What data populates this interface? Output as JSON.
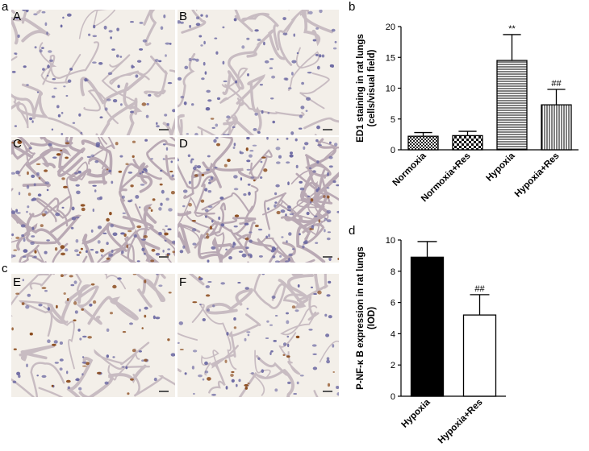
{
  "figure": {
    "panel_letters": [
      "a",
      "b",
      "c",
      "d"
    ],
    "micrograph_labels": [
      "A",
      "B",
      "C",
      "D",
      "E",
      "F"
    ]
  },
  "chart_data": [
    {
      "type": "bar",
      "panel": "b",
      "title": "",
      "xlabel": "",
      "ylabel": "ED1 staining in rat lungs (cells/visual field)",
      "ylabel_lines": [
        "ED1 staining in rat lungs",
        "(cells/visual field)"
      ],
      "categories": [
        "Normoxia",
        "Normoxia+Res",
        "Hypoxia",
        "Hypoxia+Res"
      ],
      "values": [
        2.2,
        2.3,
        14.5,
        7.3
      ],
      "errors": [
        0.6,
        0.7,
        4.2,
        2.5
      ],
      "annotations": [
        "",
        "",
        "**",
        "##"
      ],
      "patterns": [
        "checker-fine",
        "checker-coarse",
        "horizontal-lines",
        "vertical-lines"
      ],
      "ylim": [
        0,
        20
      ],
      "yticks": [
        "0",
        "5",
        "10",
        "15",
        "20"
      ],
      "grid": false,
      "legend": "none"
    },
    {
      "type": "bar",
      "panel": "d",
      "title": "",
      "xlabel": "",
      "ylabel": "P-NF-κ B expression in rat lungs (IOD)",
      "ylabel_lines": [
        "P-NF-κ B expression in rat lungs",
        "(IOD)"
      ],
      "categories": [
        "Hypoxia",
        "Hypoxia+Res"
      ],
      "values": [
        8.9,
        5.2
      ],
      "errors": [
        1.0,
        1.3
      ],
      "annotations": [
        "",
        "##"
      ],
      "fills": [
        "#000000",
        "#ffffff"
      ],
      "ylim": [
        0,
        10
      ],
      "yticks": [
        "0",
        "2",
        "4",
        "6",
        "8",
        "10"
      ],
      "grid": false,
      "legend": "none"
    }
  ]
}
